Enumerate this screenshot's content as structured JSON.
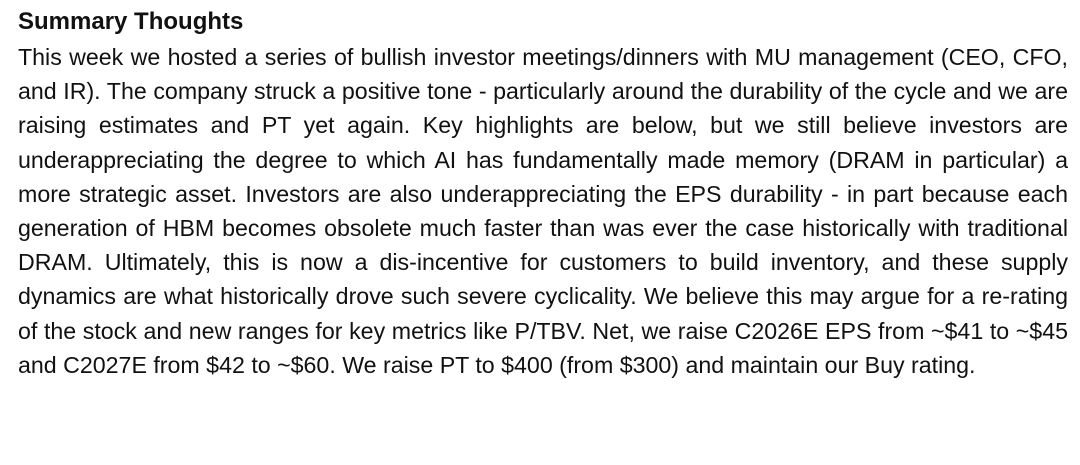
{
  "section": {
    "title": "Summary Thoughts",
    "paragraph": "This week we hosted a series of bullish investor meetings/dinners with MU management (CEO, CFO, and IR). The company struck a positive tone - particularly around the durability of the cycle and we are raising estimates and PT yet again. Key highlights are below, but we still believe investors are underappreciating the degree to which AI has fundamentally made memory (DRAM in particular) a more strategic asset. Investors are also underappreciating the EPS durability - in part because each generation of HBM becomes obsolete much faster than was ever the case historically with traditional DRAM. Ultimately, this is now a dis-incentive for customers to build inventory, and these supply dynamics are what historically drove such severe cyclicality. We believe this may argue for a re-rating of the stock and new ranges for key metrics like P/TBV. Net, we raise C2026E EPS from ~$41 to ~$45 and C2027E from $42 to ~$60. We raise PT to $400 (from $300) and maintain our Buy rating."
  }
}
